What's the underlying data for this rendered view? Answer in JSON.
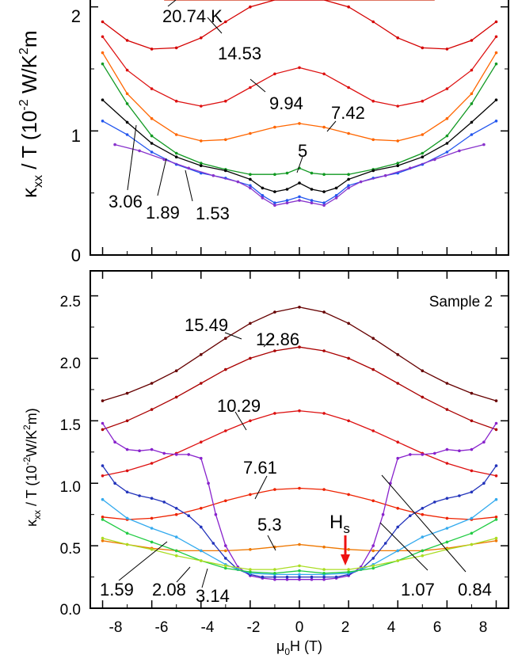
{
  "chart_data": [
    {
      "type": "line",
      "panel": "upper",
      "ylabel_main": "κ",
      "ylabel_sub": "xx",
      "ylabel_rest": " / T (10",
      "ylabel_exp": "-2",
      "ylabel_unit": " W/K",
      "ylabel_unit_exp": "2",
      "ylabel_unit_end": "m",
      "xlim": [
        -8.5,
        8.5
      ],
      "ylim": [
        0,
        2.1
      ],
      "yticks": [
        0,
        1,
        2
      ],
      "ytick_labels": [
        "0",
        "1",
        "2"
      ],
      "series": [
        {
          "name": "20.74 K",
          "color": "#cc2200",
          "x": [
            -5.5,
            -4,
            -2,
            0,
            2,
            4,
            5.5
          ],
          "y": [
            2.1,
            2.14,
            2.16,
            2.17,
            2.16,
            2.14,
            2.1
          ]
        },
        {
          "name": "14.53",
          "color": "#d40000",
          "x": [
            -8,
            -7,
            -6,
            -5,
            -4,
            -3,
            -2,
            -1,
            0,
            1,
            2,
            3,
            4,
            5,
            6,
            7,
            8
          ],
          "y": [
            1.88,
            1.73,
            1.66,
            1.67,
            1.75,
            1.88,
            2.0,
            2.08,
            2.11,
            2.08,
            2.0,
            1.88,
            1.75,
            1.67,
            1.66,
            1.73,
            1.88
          ]
        },
        {
          "name": "9.94",
          "color": "#dd1111",
          "x": [
            -8,
            -7,
            -6,
            -5,
            -4,
            -3,
            -2,
            -1,
            0,
            1,
            2,
            3,
            4,
            5,
            6,
            7,
            8
          ],
          "y": [
            1.76,
            1.49,
            1.34,
            1.24,
            1.2,
            1.24,
            1.35,
            1.46,
            1.51,
            1.46,
            1.35,
            1.24,
            1.2,
            1.24,
            1.34,
            1.49,
            1.76
          ]
        },
        {
          "name": "7.42",
          "color": "#ff6600",
          "x": [
            -8,
            -7,
            -6,
            -5,
            -4,
            -3,
            -2,
            -1,
            0,
            1,
            2,
            3,
            4,
            5,
            6,
            7,
            8
          ],
          "y": [
            1.63,
            1.3,
            1.1,
            0.97,
            0.92,
            0.93,
            0.98,
            1.03,
            1.06,
            1.03,
            0.98,
            0.93,
            0.92,
            0.97,
            1.1,
            1.3,
            1.63
          ]
        },
        {
          "name": "5",
          "color": "#119922",
          "x": [
            -8,
            -7,
            -6,
            -5,
            -4,
            -3,
            -2,
            -1,
            -0.5,
            0,
            0.5,
            1,
            2,
            3,
            4,
            5,
            6,
            7,
            8
          ],
          "y": [
            1.54,
            1.22,
            0.96,
            0.82,
            0.74,
            0.69,
            0.65,
            0.65,
            0.66,
            0.7,
            0.66,
            0.65,
            0.65,
            0.69,
            0.74,
            0.82,
            0.96,
            1.22,
            1.54
          ]
        },
        {
          "name": "3.06",
          "color": "#000000",
          "x": [
            -8,
            -7,
            -6,
            -5,
            -4,
            -3,
            -2,
            -1.5,
            -1,
            -0.5,
            0,
            0.5,
            1,
            1.5,
            2,
            3,
            4,
            5,
            6,
            7,
            8
          ],
          "y": [
            1.25,
            1.07,
            0.9,
            0.79,
            0.72,
            0.68,
            0.61,
            0.54,
            0.51,
            0.53,
            0.58,
            0.53,
            0.51,
            0.54,
            0.61,
            0.68,
            0.72,
            0.79,
            0.9,
            1.07,
            1.25
          ]
        },
        {
          "name": "1.89",
          "color": "#2255ee",
          "x": [
            -8,
            -7,
            -6,
            -5,
            -4,
            -3,
            -2,
            -1.5,
            -1,
            -0.5,
            0,
            0.5,
            1,
            1.5,
            2,
            3,
            4,
            5,
            6,
            7,
            8
          ],
          "y": [
            1.08,
            0.97,
            0.83,
            0.73,
            0.66,
            0.62,
            0.56,
            0.48,
            0.42,
            0.44,
            0.47,
            0.44,
            0.42,
            0.48,
            0.56,
            0.62,
            0.66,
            0.73,
            0.83,
            0.97,
            1.08
          ]
        },
        {
          "name": "1.53",
          "color": "#8833cc",
          "x": [
            -7.5,
            -6.5,
            -5.5,
            -4.5,
            -3.5,
            -2.5,
            -2,
            -1.5,
            -1,
            -0.5,
            0,
            0.5,
            1,
            1.5,
            2,
            2.5,
            3.5,
            4.5,
            5.5,
            6.5,
            7.5
          ],
          "y": [
            0.89,
            0.84,
            0.77,
            0.7,
            0.64,
            0.59,
            0.54,
            0.46,
            0.4,
            0.42,
            0.44,
            0.42,
            0.4,
            0.46,
            0.54,
            0.59,
            0.64,
            0.7,
            0.77,
            0.84,
            0.89
          ]
        }
      ],
      "labels": [
        "20.74 K",
        "14.53",
        "9.94",
        "7.42",
        "5",
        "3.06",
        "1.89",
        "1.53"
      ]
    },
    {
      "type": "line",
      "panel": "lower",
      "title": "Sample 2",
      "xlabel_pre": "μ",
      "xlabel_sub": "0",
      "xlabel_rest": "H (T)",
      "ylabel_main": "κ",
      "ylabel_sub": "xx",
      "ylabel_rest": " / T (10",
      "ylabel_exp": "-2",
      "ylabel_unit": "W/K",
      "ylabel_unit_exp": "2",
      "ylabel_unit_end": "m)",
      "xlim": [
        -8.5,
        8.5
      ],
      "ylim": [
        0,
        2.7
      ],
      "xticks": [
        -8,
        -6,
        -4,
        -2,
        0,
        2,
        4,
        6,
        8
      ],
      "xtick_labels": [
        "-8",
        "-6",
        "-4",
        "-2",
        "0",
        "2",
        "4",
        "6",
        "8"
      ],
      "yticks": [
        0,
        0.5,
        1.0,
        1.5,
        2.0,
        2.5
      ],
      "ytick_labels": [
        "0.0",
        "0.5",
        "1.0",
        "1.5",
        "2.0",
        "2.5"
      ],
      "annotation": {
        "label": "H",
        "sub": "s",
        "x": 2,
        "color": "#ee1111"
      },
      "series": [
        {
          "name": "15.49",
          "color": "#660000",
          "x": [
            -8,
            -7,
            -6,
            -5,
            -4,
            -3,
            -2,
            -1,
            0,
            1,
            2,
            3,
            4,
            5,
            6,
            7,
            8
          ],
          "y": [
            1.66,
            1.72,
            1.8,
            1.9,
            2.03,
            2.16,
            2.28,
            2.37,
            2.41,
            2.37,
            2.28,
            2.16,
            2.03,
            1.9,
            1.8,
            1.72,
            1.66
          ]
        },
        {
          "name": "12.86",
          "color": "#aa0000",
          "x": [
            -8,
            -7,
            -6,
            -5,
            -4,
            -3,
            -2,
            -1,
            0,
            1,
            2,
            3,
            4,
            5,
            6,
            7,
            8
          ],
          "y": [
            1.43,
            1.5,
            1.59,
            1.69,
            1.8,
            1.91,
            2.0,
            2.06,
            2.09,
            2.06,
            2.0,
            1.91,
            1.8,
            1.69,
            1.59,
            1.5,
            1.43
          ]
        },
        {
          "name": "10.29",
          "color": "#dd1111",
          "x": [
            -8,
            -7,
            -6,
            -5,
            -4,
            -3,
            -2,
            -1,
            0,
            1,
            2,
            3,
            4,
            5,
            6,
            7,
            8
          ],
          "y": [
            1.06,
            1.1,
            1.16,
            1.24,
            1.33,
            1.42,
            1.5,
            1.56,
            1.58,
            1.56,
            1.5,
            1.42,
            1.33,
            1.24,
            1.16,
            1.1,
            1.06
          ]
        },
        {
          "name": "7.61",
          "color": "#ee2200",
          "x": [
            -8,
            -7,
            -6,
            -5,
            -4,
            -3,
            -2,
            -1,
            0,
            1,
            2,
            3,
            4,
            5,
            6,
            7,
            8
          ],
          "y": [
            0.73,
            0.71,
            0.72,
            0.75,
            0.8,
            0.86,
            0.91,
            0.95,
            0.96,
            0.95,
            0.91,
            0.86,
            0.8,
            0.75,
            0.72,
            0.71,
            0.73
          ]
        },
        {
          "name": "5.3",
          "color": "#ee7700",
          "x": [
            -8,
            -7,
            -6,
            -5,
            -4,
            -3,
            -2,
            -1,
            0,
            1,
            2,
            3,
            4,
            5,
            6,
            7,
            8
          ],
          "y": [
            0.54,
            0.51,
            0.48,
            0.46,
            0.46,
            0.46,
            0.47,
            0.49,
            0.51,
            0.49,
            0.47,
            0.46,
            0.46,
            0.46,
            0.48,
            0.51,
            0.54
          ]
        },
        {
          "name": "0.84",
          "color": "#8822cc",
          "x": [
            -8,
            -7.5,
            -7,
            -6.5,
            -6,
            -5.5,
            -5,
            -4.5,
            -4,
            -3.7,
            -3.4,
            -3,
            -2.5,
            -2,
            -1.5,
            -1,
            -0.5,
            0,
            0.5,
            1,
            1.5,
            2,
            2.5,
            3,
            3.4,
            3.7,
            4,
            4.5,
            5,
            5.5,
            6,
            6.5,
            7,
            7.5,
            8
          ],
          "y": [
            1.48,
            1.33,
            1.27,
            1.26,
            1.27,
            1.24,
            1.23,
            1.23,
            1.2,
            1.0,
            0.75,
            0.5,
            0.33,
            0.26,
            0.24,
            0.23,
            0.23,
            0.23,
            0.23,
            0.23,
            0.24,
            0.26,
            0.33,
            0.5,
            0.75,
            1.0,
            1.2,
            1.23,
            1.23,
            1.24,
            1.27,
            1.26,
            1.27,
            1.33,
            1.48
          ]
        },
        {
          "name": "1.07",
          "color": "#2233bb",
          "x": [
            -8,
            -7.5,
            -7,
            -6.5,
            -6,
            -5.5,
            -5,
            -4.5,
            -4,
            -3.5,
            -3,
            -2.5,
            -2,
            -1.5,
            -1,
            -0.5,
            0,
            0.5,
            1,
            1.5,
            2,
            2.5,
            3,
            3.5,
            4,
            4.5,
            5,
            5.5,
            6,
            6.5,
            7,
            7.5,
            8
          ],
          "y": [
            1.14,
            1.0,
            0.93,
            0.9,
            0.88,
            0.85,
            0.8,
            0.74,
            0.65,
            0.52,
            0.4,
            0.31,
            0.27,
            0.25,
            0.25,
            0.25,
            0.25,
            0.25,
            0.25,
            0.25,
            0.27,
            0.31,
            0.4,
            0.52,
            0.65,
            0.74,
            0.8,
            0.85,
            0.88,
            0.9,
            0.93,
            1.0,
            1.14
          ]
        },
        {
          "name": "1.59",
          "color": "#33aaee",
          "x": [
            -8,
            -7,
            -6,
            -5,
            -4,
            -3,
            -2.5,
            -2,
            -1,
            0,
            1,
            2,
            2.5,
            3,
            4,
            5,
            6,
            7,
            8
          ],
          "y": [
            0.87,
            0.72,
            0.64,
            0.57,
            0.46,
            0.35,
            0.31,
            0.28,
            0.27,
            0.27,
            0.27,
            0.28,
            0.31,
            0.35,
            0.46,
            0.57,
            0.64,
            0.72,
            0.87
          ]
        },
        {
          "name": "2.08",
          "color": "#22cc44",
          "x": [
            -8,
            -7,
            -6,
            -5,
            -4,
            -3,
            -2,
            -1,
            0,
            1,
            2,
            3,
            4,
            5,
            6,
            7,
            8
          ],
          "y": [
            0.71,
            0.6,
            0.53,
            0.46,
            0.38,
            0.32,
            0.29,
            0.28,
            0.3,
            0.28,
            0.29,
            0.32,
            0.38,
            0.46,
            0.53,
            0.6,
            0.71
          ]
        },
        {
          "name": "3.14",
          "color": "#aadd22",
          "x": [
            -8,
            -7,
            -6,
            -5,
            -4,
            -3,
            -2,
            -1,
            0,
            1,
            2,
            3,
            4,
            5,
            6,
            7,
            8
          ],
          "y": [
            0.56,
            0.51,
            0.47,
            0.42,
            0.38,
            0.34,
            0.31,
            0.31,
            0.34,
            0.31,
            0.31,
            0.34,
            0.38,
            0.42,
            0.47,
            0.51,
            0.56
          ]
        }
      ],
      "labels": [
        "15.49",
        "12.86",
        "10.29",
        "7.61",
        "5.3",
        "1.59",
        "2.08",
        "3.14",
        "1.07",
        "0.84"
      ]
    }
  ]
}
